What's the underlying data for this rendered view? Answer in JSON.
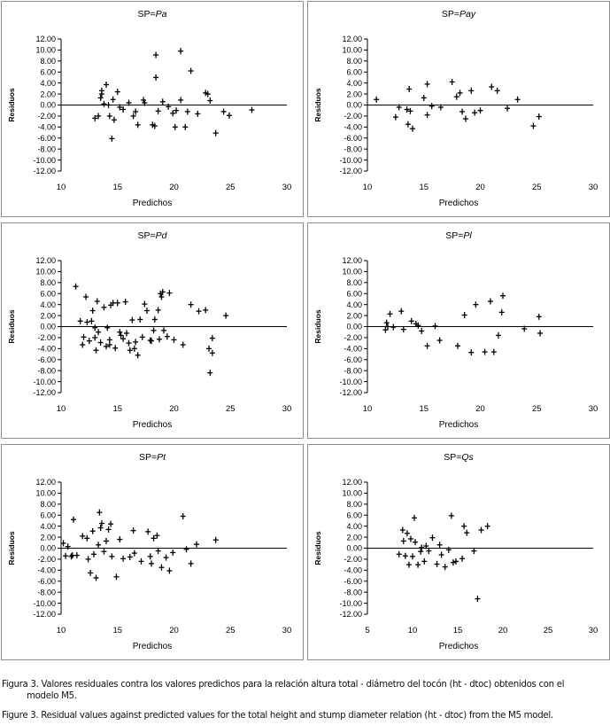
{
  "chart_data": [
    {
      "type": "scatter",
      "title_prefix": "SP=",
      "title_species": "Pa",
      "xlabel": "Predichos",
      "ylabel": "Residuos",
      "xlim": [
        10,
        30
      ],
      "ylim": [
        -12,
        12
      ],
      "xticks": [
        "10",
        "15",
        "20",
        "25",
        "30"
      ],
      "yticks": [
        "12.00",
        "10.00",
        "8.00",
        "6.00",
        "4.00",
        "2.00",
        "0.00",
        "-2.00",
        "-4.00",
        "-6.00",
        "-8.00",
        "-10.00",
        "-12.00"
      ],
      "points": [
        [
          13.0,
          -2.4
        ],
        [
          13.3,
          -2.0
        ],
        [
          13.5,
          1.3
        ],
        [
          13.6,
          2.0
        ],
        [
          13.6,
          2.6
        ],
        [
          13.8,
          0.2
        ],
        [
          14.0,
          3.7
        ],
        [
          14.2,
          0.0
        ],
        [
          14.3,
          -2.0
        ],
        [
          14.5,
          -6.1
        ],
        [
          14.6,
          1.0
        ],
        [
          14.7,
          -2.7
        ],
        [
          15.0,
          2.4
        ],
        [
          15.2,
          -0.4
        ],
        [
          15.5,
          -0.8
        ],
        [
          16.0,
          0.4
        ],
        [
          16.4,
          -2.0
        ],
        [
          16.6,
          -1.2
        ],
        [
          16.8,
          -3.6
        ],
        [
          17.3,
          0.9
        ],
        [
          17.4,
          0.4
        ],
        [
          18.1,
          -3.6
        ],
        [
          18.3,
          -3.8
        ],
        [
          18.4,
          9.1
        ],
        [
          18.4,
          5.0
        ],
        [
          18.6,
          -1.1
        ],
        [
          19.0,
          0.6
        ],
        [
          19.5,
          -0.3
        ],
        [
          19.9,
          -1.5
        ],
        [
          20.1,
          -4.0
        ],
        [
          20.2,
          -1.0
        ],
        [
          20.6,
          9.8
        ],
        [
          20.6,
          0.9
        ],
        [
          21.0,
          -4.0
        ],
        [
          21.2,
          -1.2
        ],
        [
          21.5,
          6.2
        ],
        [
          22.1,
          -1.6
        ],
        [
          22.8,
          2.2
        ],
        [
          23.0,
          2.0
        ],
        [
          23.2,
          0.8
        ],
        [
          23.7,
          -5.1
        ],
        [
          24.4,
          -1.2
        ],
        [
          24.9,
          -1.9
        ],
        [
          26.9,
          -0.9
        ]
      ]
    },
    {
      "type": "scatter",
      "title_prefix": "SP=",
      "title_species": "Pay",
      "xlabel": "Predichos",
      "ylabel": "Residuos",
      "xlim": [
        10,
        30
      ],
      "ylim": [
        -12,
        12
      ],
      "xticks": [
        "10",
        "15",
        "20",
        "25",
        "30"
      ],
      "yticks": [
        "12.00",
        "10.00",
        "8.00",
        "6.00",
        "4.00",
        "2.00",
        "0.00",
        "-2.00",
        "-4.00",
        "-6.00",
        "-8.00",
        "-10.00",
        "-12.00"
      ],
      "points": [
        [
          10.8,
          1.0
        ],
        [
          12.5,
          -2.2
        ],
        [
          12.8,
          -0.4
        ],
        [
          13.5,
          -0.8
        ],
        [
          13.6,
          -3.5
        ],
        [
          13.7,
          2.9
        ],
        [
          13.8,
          -1.1
        ],
        [
          14.0,
          -4.3
        ],
        [
          15.0,
          1.3
        ],
        [
          15.3,
          -1.8
        ],
        [
          15.3,
          3.8
        ],
        [
          15.7,
          -0.2
        ],
        [
          16.5,
          -0.4
        ],
        [
          17.5,
          4.2
        ],
        [
          17.9,
          1.5
        ],
        [
          18.2,
          2.2
        ],
        [
          18.4,
          -1.2
        ],
        [
          18.7,
          -2.5
        ],
        [
          19.2,
          2.6
        ],
        [
          19.5,
          -1.4
        ],
        [
          20.0,
          -1.0
        ],
        [
          21.0,
          3.3
        ],
        [
          21.5,
          2.6
        ],
        [
          22.4,
          -0.6
        ],
        [
          23.3,
          1.0
        ],
        [
          24.7,
          -3.8
        ],
        [
          25.2,
          -2.1
        ]
      ]
    },
    {
      "type": "scatter",
      "title_prefix": "SP=",
      "title_species": "Pd",
      "xlabel": "Predichos",
      "ylabel": "Residuos",
      "xlim": [
        10,
        30
      ],
      "ylim": [
        -12,
        12
      ],
      "xticks": [
        "10",
        "15",
        "20",
        "25",
        "30"
      ],
      "yticks": [
        "12.00",
        "10.00",
        "8.00",
        "6.00",
        "4.00",
        "2.00",
        "0.00",
        "-2.00",
        "-4.00",
        "-6.00",
        "-8.00",
        "-10.00",
        "-12.00"
      ],
      "points": [
        [
          11.3,
          7.3
        ],
        [
          11.7,
          1.0
        ],
        [
          11.9,
          -3.3
        ],
        [
          12.0,
          -1.9
        ],
        [
          12.2,
          5.4
        ],
        [
          12.3,
          0.8
        ],
        [
          12.5,
          -2.6
        ],
        [
          12.7,
          1.0
        ],
        [
          12.8,
          2.9
        ],
        [
          13.0,
          -0.2
        ],
        [
          13.0,
          -2.0
        ],
        [
          13.1,
          -4.3
        ],
        [
          13.2,
          4.6
        ],
        [
          13.3,
          -1.0
        ],
        [
          13.5,
          -2.9
        ],
        [
          13.8,
          3.5
        ],
        [
          14.0,
          -3.6
        ],
        [
          14.1,
          -0.2
        ],
        [
          14.3,
          -3.3
        ],
        [
          14.3,
          -2.4
        ],
        [
          14.4,
          3.9
        ],
        [
          14.6,
          4.3
        ],
        [
          14.8,
          -3.9
        ],
        [
          15.0,
          4.3
        ],
        [
          15.2,
          -1.0
        ],
        [
          15.3,
          -1.6
        ],
        [
          15.5,
          -2.2
        ],
        [
          15.7,
          4.5
        ],
        [
          15.8,
          -1.2
        ],
        [
          16.0,
          -3.0
        ],
        [
          16.1,
          -4.3
        ],
        [
          16.3,
          1.2
        ],
        [
          16.5,
          -4.0
        ],
        [
          16.6,
          -2.8
        ],
        [
          16.8,
          -5.2
        ],
        [
          17.0,
          1.3
        ],
        [
          17.2,
          -1.9
        ],
        [
          17.4,
          4.1
        ],
        [
          17.6,
          2.9
        ],
        [
          17.9,
          -2.5
        ],
        [
          18.0,
          -2.6
        ],
        [
          18.2,
          -0.7
        ],
        [
          18.3,
          1.3
        ],
        [
          18.6,
          3.0
        ],
        [
          18.7,
          -2.3
        ],
        [
          18.8,
          6.0
        ],
        [
          18.9,
          5.4
        ],
        [
          19.0,
          6.3
        ],
        [
          19.1,
          -0.7
        ],
        [
          19.4,
          -1.8
        ],
        [
          19.6,
          6.1
        ],
        [
          20.0,
          -2.4
        ],
        [
          20.8,
          -3.3
        ],
        [
          21.5,
          4.0
        ],
        [
          22.2,
          2.8
        ],
        [
          22.8,
          3.0
        ],
        [
          23.1,
          -4.0
        ],
        [
          23.2,
          -8.4
        ],
        [
          23.4,
          -2.1
        ],
        [
          23.4,
          -4.8
        ],
        [
          24.6,
          2.0
        ]
      ]
    },
    {
      "type": "scatter",
      "title_prefix": "SP=",
      "title_species": "Pl",
      "xlabel": "Predichos",
      "ylabel": "Residuos",
      "xlim": [
        10,
        30
      ],
      "ylim": [
        -12,
        12
      ],
      "xticks": [
        "10",
        "15",
        "20",
        "25",
        "30"
      ],
      "yticks": [
        "12.00",
        "10.00",
        "8.00",
        "6.00",
        "4.00",
        "2.00",
        "0.00",
        "-2.00",
        "-4.00",
        "-6.00",
        "-8.00",
        "-10.00",
        "-12.00"
      ],
      "points": [
        [
          11.6,
          -0.6
        ],
        [
          11.7,
          0.7
        ],
        [
          11.8,
          0.0
        ],
        [
          12.0,
          2.3
        ],
        [
          12.3,
          -0.1
        ],
        [
          13.0,
          2.8
        ],
        [
          13.2,
          -0.5
        ],
        [
          13.9,
          1.0
        ],
        [
          14.3,
          0.5
        ],
        [
          14.5,
          0.2
        ],
        [
          14.8,
          -0.8
        ],
        [
          15.3,
          -3.5
        ],
        [
          16.0,
          0.1
        ],
        [
          16.4,
          -2.5
        ],
        [
          18.0,
          -3.5
        ],
        [
          18.6,
          2.1
        ],
        [
          19.2,
          -4.7
        ],
        [
          19.6,
          4.0
        ],
        [
          20.4,
          -4.6
        ],
        [
          20.9,
          4.6
        ],
        [
          21.2,
          -4.6
        ],
        [
          21.6,
          -1.6
        ],
        [
          21.9,
          2.6
        ],
        [
          22.0,
          5.6
        ],
        [
          23.9,
          -0.4
        ],
        [
          25.2,
          1.8
        ],
        [
          25.3,
          -1.2
        ]
      ]
    },
    {
      "type": "scatter",
      "title_prefix": "SP=",
      "title_species": "Pt",
      "xlabel": "Predichos",
      "ylabel": "Residuos",
      "xlim": [
        10,
        30
      ],
      "ylim": [
        -12,
        12
      ],
      "xticks": [
        "10",
        "15",
        "20",
        "25",
        "30"
      ],
      "yticks": [
        "12.00",
        "10.00",
        "8.00",
        "6.00",
        "4.00",
        "2.00",
        "0.00",
        "-2.00",
        "-4.00",
        "-6.00",
        "-8.00",
        "-10.00",
        "-12.00"
      ],
      "points": [
        [
          10.2,
          0.9
        ],
        [
          10.4,
          -1.4
        ],
        [
          10.6,
          0.3
        ],
        [
          10.9,
          -1.5
        ],
        [
          11.0,
          -1.3
        ],
        [
          11.1,
          5.2
        ],
        [
          11.4,
          -1.3
        ],
        [
          11.9,
          2.2
        ],
        [
          12.3,
          1.8
        ],
        [
          12.4,
          -2.0
        ],
        [
          12.6,
          -4.5
        ],
        [
          12.8,
          3.1
        ],
        [
          12.9,
          -1.1
        ],
        [
          13.1,
          -5.4
        ],
        [
          13.3,
          0.6
        ],
        [
          13.4,
          6.5
        ],
        [
          13.5,
          3.7
        ],
        [
          13.6,
          4.5
        ],
        [
          13.8,
          -0.6
        ],
        [
          14.0,
          1.3
        ],
        [
          14.2,
          3.4
        ],
        [
          14.4,
          4.4
        ],
        [
          14.5,
          -1.5
        ],
        [
          14.9,
          -5.2
        ],
        [
          15.2,
          1.6
        ],
        [
          15.5,
          -1.9
        ],
        [
          16.1,
          -1.6
        ],
        [
          16.4,
          3.2
        ],
        [
          16.5,
          -0.9
        ],
        [
          17.1,
          -2.4
        ],
        [
          17.7,
          3.0
        ],
        [
          17.9,
          -1.5
        ],
        [
          18.0,
          -2.8
        ],
        [
          18.2,
          1.8
        ],
        [
          18.5,
          2.3
        ],
        [
          18.6,
          -0.5
        ],
        [
          18.9,
          -3.5
        ],
        [
          19.3,
          -1.7
        ],
        [
          19.6,
          -4.1
        ],
        [
          19.9,
          -0.8
        ],
        [
          20.8,
          5.8
        ],
        [
          21.1,
          -0.2
        ],
        [
          21.5,
          -2.8
        ],
        [
          22.0,
          0.7
        ],
        [
          23.7,
          1.5
        ]
      ]
    },
    {
      "type": "scatter",
      "title_prefix": "SP=",
      "title_species": "Qs",
      "xlabel": "Predichos",
      "ylabel": "Residuos",
      "xlim": [
        5,
        30
      ],
      "ylim": [
        -12,
        12
      ],
      "xticks": [
        "5",
        "10",
        "15",
        "20",
        "25",
        "30"
      ],
      "yticks": [
        "12.00",
        "10.00",
        "8.00",
        "6.00",
        "4.00",
        "2.00",
        "0.00",
        "-2.00",
        "-4.00",
        "-6.00",
        "-8.00",
        "-10.00",
        "-12.00"
      ],
      "points": [
        [
          8.5,
          -1.1
        ],
        [
          8.9,
          3.3
        ],
        [
          9.0,
          1.3
        ],
        [
          9.2,
          -1.4
        ],
        [
          9.4,
          2.7
        ],
        [
          9.6,
          -3.0
        ],
        [
          9.8,
          1.7
        ],
        [
          10.0,
          -1.5
        ],
        [
          10.2,
          5.5
        ],
        [
          10.3,
          1.1
        ],
        [
          10.6,
          -3.0
        ],
        [
          10.9,
          -0.6
        ],
        [
          11.0,
          0.1
        ],
        [
          11.3,
          -2.4
        ],
        [
          11.5,
          0.4
        ],
        [
          11.8,
          -0.5
        ],
        [
          12.2,
          1.9
        ],
        [
          12.7,
          -2.9
        ],
        [
          13.0,
          0.6
        ],
        [
          13.2,
          -1.2
        ],
        [
          13.6,
          -3.4
        ],
        [
          14.0,
          -0.3
        ],
        [
          14.3,
          5.9
        ],
        [
          14.5,
          -2.6
        ],
        [
          14.8,
          -2.4
        ],
        [
          15.5,
          -1.9
        ],
        [
          15.7,
          4.0
        ],
        [
          16.0,
          2.8
        ],
        [
          16.8,
          -0.5
        ],
        [
          17.2,
          -9.2
        ],
        [
          17.6,
          3.3
        ],
        [
          18.3,
          4.0
        ]
      ]
    }
  ],
  "caption": {
    "line1": "Figura 3. Valores residuales contra los valores predichos para la relación altura total - diámetro del tocón (ht - dtoc) obtenidos con el",
    "line2": "modelo M5.",
    "line3": "Figure 3. Residual values against predicted values for the total height and stump diameter relation (ht - dtoc) from the M5 model."
  }
}
